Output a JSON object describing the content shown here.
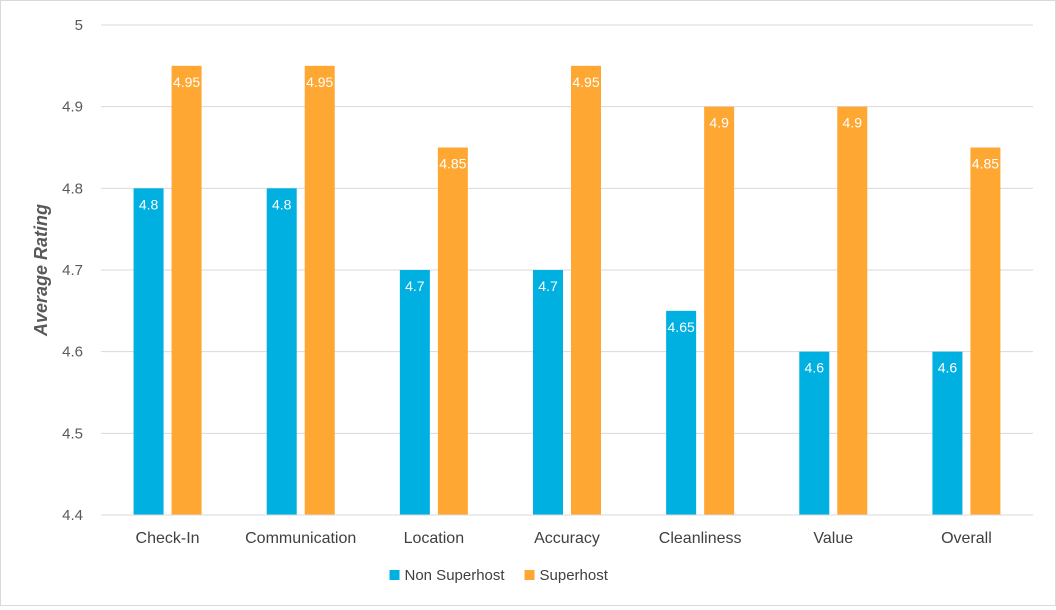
{
  "chart_data": {
    "type": "bar",
    "title": "",
    "xlabel": "",
    "ylabel": "Average Rating",
    "ylim": [
      4.4,
      5.0
    ],
    "yticks": [
      "4.4",
      "4.5",
      "4.6",
      "4.7",
      "4.8",
      "4.9",
      "5"
    ],
    "grid": true,
    "legend_position": "bottom",
    "categories": [
      "Check-In",
      "Communication",
      "Location",
      "Accuracy",
      "Cleanliness",
      "Value",
      "Overall"
    ],
    "series": [
      {
        "name": "Non Superhost",
        "color": "#00b0e0",
        "values": [
          4.8,
          4.8,
          4.7,
          4.7,
          4.65,
          4.6,
          4.6
        ],
        "labels": [
          "4.8",
          "4.8",
          "4.7",
          "4.7",
          "4.65",
          "4.6",
          "4.6"
        ]
      },
      {
        "name": "Superhost",
        "color": "#ffa733",
        "values": [
          4.95,
          4.95,
          4.85,
          4.95,
          4.9,
          4.9,
          4.85
        ],
        "labels": [
          "4.95",
          "4.95",
          "4.85",
          "4.95",
          "4.9",
          "4.9",
          "4.85"
        ]
      }
    ]
  }
}
